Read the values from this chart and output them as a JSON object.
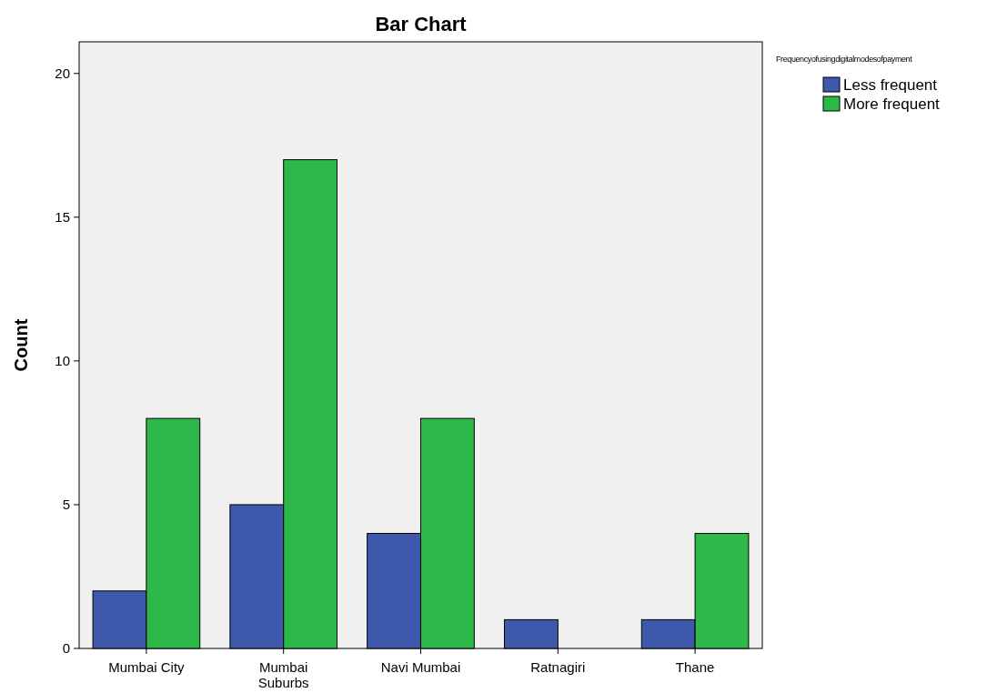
{
  "chart_data": {
    "type": "bar",
    "title": "Bar Chart",
    "ylabel": "Count",
    "legend_title": "Frequencyofusingdigitalmodesofpayment",
    "categories": [
      "Mumbai City",
      "Mumbai Suburbs",
      "Navi Mumbai",
      "Ratnagiri",
      "Thane"
    ],
    "series": [
      {
        "name": "Less frequent",
        "color": "#3e58ac",
        "values": [
          2,
          5,
          4,
          1,
          1
        ]
      },
      {
        "name": "More frequent",
        "color": "#2db84a",
        "values": [
          8,
          17,
          8,
          null,
          4
        ]
      }
    ],
    "ylim": [
      0,
      21.1
    ],
    "yticks": [
      0,
      5,
      10,
      15,
      20
    ],
    "grid": false,
    "legend": "top right"
  }
}
